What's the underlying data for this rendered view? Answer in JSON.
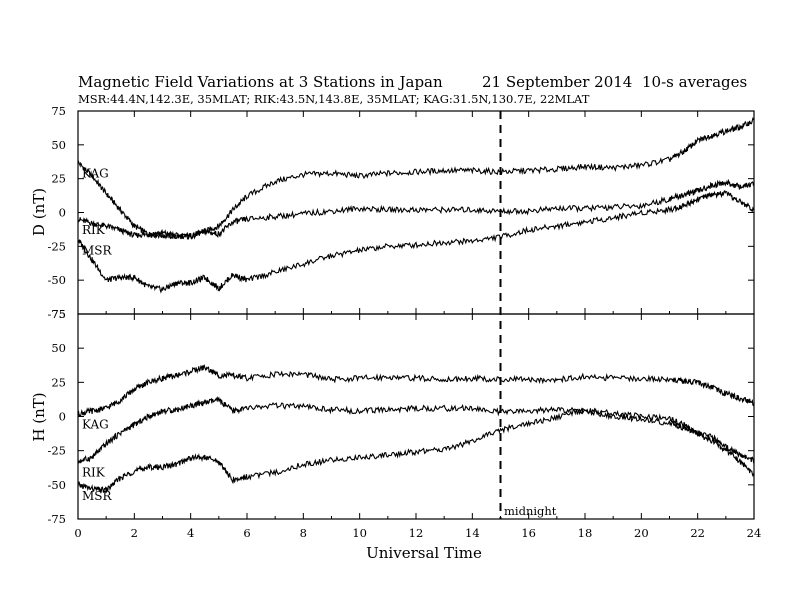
{
  "header": {
    "title": "Magnetic Field Variations at 3 Stations in Japan",
    "date": "21 September 2014",
    "averaging": "10-s averages",
    "stations_line": "MSR:44.4N,142.3E, 35MLAT;   RIK:43.5N,143.8E, 35MLAT;   KAG:31.5N,130.7E, 22MLAT"
  },
  "chart_data": [
    {
      "type": "line",
      "panel": "top",
      "ylabel": "D (nT)",
      "xlabel": "",
      "xlim": [
        0,
        24
      ],
      "ylim": [
        -75,
        75
      ],
      "x_ticks": [
        0,
        2,
        4,
        6,
        8,
        10,
        12,
        14,
        16,
        18,
        20,
        22,
        24
      ],
      "y_ticks": [
        -75,
        -50,
        -25,
        0,
        25,
        50,
        75
      ],
      "series": [
        {
          "name": "KAG",
          "x": [
            0,
            0.5,
            1,
            1.5,
            2,
            2.5,
            3,
            3.5,
            4,
            4.5,
            5,
            5.5,
            6,
            7,
            8,
            9,
            10,
            11,
            12,
            13,
            14,
            15,
            16,
            17,
            18,
            19,
            20,
            21,
            21.5,
            22,
            22.5,
            23,
            23.5,
            24
          ],
          "y": [
            37,
            27,
            14,
            2,
            -10,
            -16,
            -17,
            -18,
            -17,
            -14,
            -10,
            2,
            12,
            23,
            28,
            29,
            27,
            29,
            30,
            31,
            31,
            30,
            31,
            32,
            34,
            33,
            35,
            39,
            45,
            53,
            57,
            60,
            63,
            68
          ]
        },
        {
          "name": "RIK",
          "x": [
            0,
            0.5,
            1,
            1.5,
            2,
            2.5,
            3,
            3.5,
            4,
            4.5,
            5,
            5.5,
            6,
            7,
            8,
            9,
            10,
            11,
            12,
            13,
            14,
            15,
            16,
            17,
            18,
            19,
            20,
            21,
            21.5,
            22,
            22.5,
            23,
            23.5,
            24
          ],
          "y": [
            -5,
            -8,
            -10,
            -13,
            -17,
            -16,
            -15,
            -17,
            -18,
            -14,
            -16,
            -7,
            -5,
            -3,
            -1,
            1,
            3,
            2,
            2,
            2,
            2,
            1,
            1,
            3,
            3,
            4,
            5,
            10,
            13,
            16,
            20,
            22,
            19,
            21
          ]
        },
        {
          "name": "MSR",
          "x": [
            0,
            0.5,
            1,
            1.5,
            2,
            2.5,
            3,
            3.5,
            4,
            4.5,
            5,
            5.5,
            6,
            7,
            8,
            9,
            10,
            11,
            12,
            13,
            14,
            15,
            16,
            17,
            18,
            19,
            20,
            21,
            21.5,
            22,
            22.5,
            23,
            23.5,
            24
          ],
          "y": [
            -20,
            -35,
            -50,
            -48,
            -48,
            -55,
            -57,
            -52,
            -52,
            -48,
            -56,
            -46,
            -50,
            -44,
            -38,
            -32,
            -28,
            -25,
            -24,
            -22,
            -21,
            -18,
            -13,
            -10,
            -7,
            -4,
            0,
            2,
            5,
            10,
            13,
            14,
            8,
            2
          ]
        }
      ]
    },
    {
      "type": "line",
      "panel": "bottom",
      "ylabel": "H (nT)",
      "xlabel": "Universal Time",
      "xlim": [
        0,
        24
      ],
      "ylim": [
        -75,
        75
      ],
      "x_ticks": [
        0,
        2,
        4,
        6,
        8,
        10,
        12,
        14,
        16,
        18,
        20,
        22,
        24
      ],
      "y_ticks": [
        -75,
        -50,
        -25,
        0,
        25,
        50,
        75
      ],
      "series": [
        {
          "name": "KAG",
          "x": [
            0,
            0.5,
            1,
            1.5,
            2,
            2.5,
            3,
            3.5,
            4,
            4.5,
            5,
            5.5,
            6,
            7,
            8,
            9,
            10,
            11,
            12,
            13,
            14,
            15,
            16,
            17,
            18,
            19,
            20,
            21,
            21.5,
            22,
            22.5,
            23,
            23.5,
            24
          ],
          "y": [
            2,
            4,
            6,
            12,
            20,
            25,
            28,
            30,
            33,
            36,
            30,
            30,
            28,
            31,
            31,
            27,
            28,
            29,
            28,
            27,
            28,
            27,
            27,
            27,
            29,
            28,
            28,
            27,
            26,
            25,
            21,
            17,
            13,
            10
          ]
        },
        {
          "name": "RIK",
          "x": [
            0,
            0.5,
            1,
            1.5,
            2,
            2.5,
            3,
            3.5,
            4,
            4.5,
            5,
            5.5,
            6,
            7,
            8,
            9,
            10,
            11,
            12,
            13,
            14,
            15,
            16,
            17,
            18,
            19,
            20,
            21,
            21.5,
            22,
            22.5,
            23,
            23.5,
            24
          ],
          "y": [
            -33,
            -30,
            -20,
            -12,
            -6,
            0,
            4,
            5,
            8,
            10,
            12,
            4,
            6,
            8,
            7,
            5,
            4,
            5,
            6,
            6,
            6,
            3,
            4,
            5,
            4,
            0,
            -2,
            -5,
            -8,
            -12,
            -15,
            -22,
            -28,
            -32
          ]
        },
        {
          "name": "MSR",
          "x": [
            0,
            0.5,
            1,
            1.5,
            2,
            2.5,
            3,
            3.5,
            4,
            4.5,
            5,
            5.5,
            6,
            7,
            8,
            9,
            10,
            11,
            12,
            13,
            14,
            15,
            16,
            17,
            18,
            19,
            20,
            21,
            21.5,
            22,
            22.5,
            23,
            23.5,
            24
          ],
          "y": [
            -50,
            -53,
            -54,
            -45,
            -40,
            -37,
            -37,
            -35,
            -30,
            -30,
            -33,
            -47,
            -44,
            -41,
            -35,
            -32,
            -30,
            -28,
            -26,
            -24,
            -18,
            -10,
            -5,
            -1,
            5,
            2,
            0,
            -2,
            -6,
            -13,
            -18,
            -25,
            -33,
            -43
          ]
        }
      ]
    }
  ],
  "annotations": {
    "midnight_x": 15,
    "midnight_label": "midnight"
  }
}
